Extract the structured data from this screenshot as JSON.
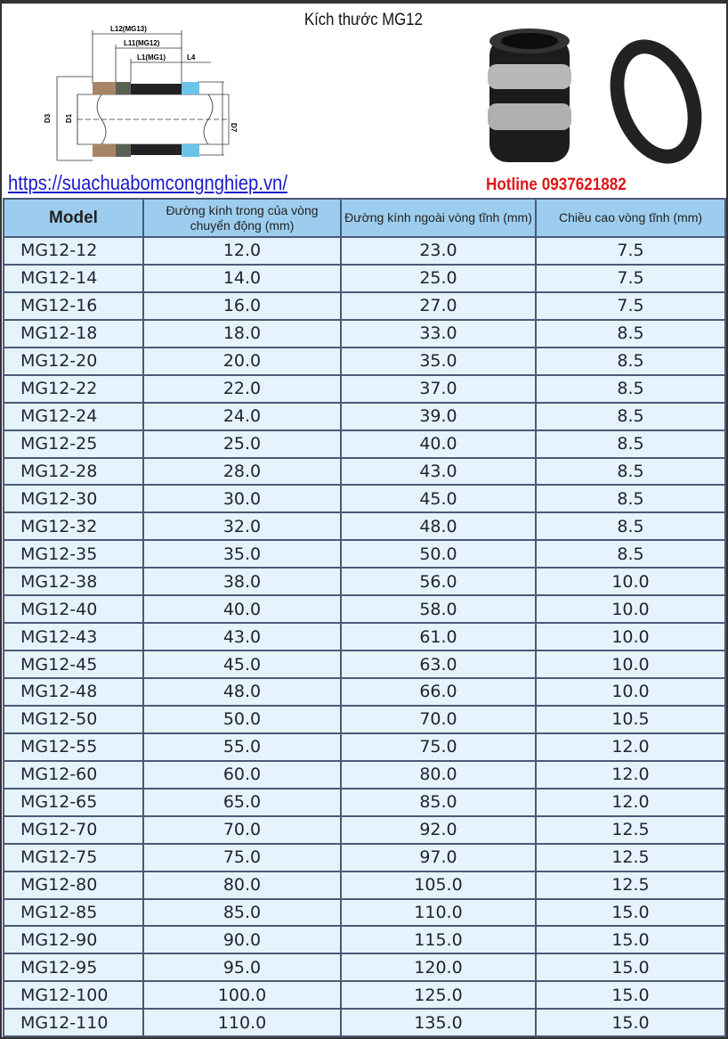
{
  "header": {
    "title": "Kích thước MG12",
    "url": "https://suachuabomcongnghiep.vn/",
    "hotline": "Hotline 0937621882"
  },
  "diagram": {
    "labels": [
      "L12(MG13)",
      "L11(MG12)",
      "L1(MG1)",
      "L4",
      "D3",
      "D1",
      "D7"
    ]
  },
  "table": {
    "columns": [
      "Model",
      "Đường kính trong của vòng chuyển động (mm)",
      "Đường kính ngoài vòng tĩnh (mm)",
      "Chiều cao vòng tĩnh (mm)"
    ],
    "rows": [
      [
        "MG12-12",
        "12.0",
        "23.0",
        "7.5"
      ],
      [
        "MG12-14",
        "14.0",
        "25.0",
        "7.5"
      ],
      [
        "MG12-16",
        "16.0",
        "27.0",
        "7.5"
      ],
      [
        "MG12-18",
        "18.0",
        "33.0",
        "8.5"
      ],
      [
        "MG12-20",
        "20.0",
        "35.0",
        "8.5"
      ],
      [
        "MG12-22",
        "22.0",
        "37.0",
        "8.5"
      ],
      [
        "MG12-24",
        "24.0",
        "39.0",
        "8.5"
      ],
      [
        "MG12-25",
        "25.0",
        "40.0",
        "8.5"
      ],
      [
        "MG12-28",
        "28.0",
        "43.0",
        "8.5"
      ],
      [
        "MG12-30",
        "30.0",
        "45.0",
        "8.5"
      ],
      [
        "MG12-32",
        "32.0",
        "48.0",
        "8.5"
      ],
      [
        "MG12-35",
        "35.0",
        "50.0",
        "8.5"
      ],
      [
        "MG12-38",
        "38.0",
        "56.0",
        "10.0"
      ],
      [
        "MG12-40",
        "40.0",
        "58.0",
        "10.0"
      ],
      [
        "MG12-43",
        "43.0",
        "61.0",
        "10.0"
      ],
      [
        "MG12-45",
        "45.0",
        "63.0",
        "10.0"
      ],
      [
        "MG12-48",
        "48.0",
        "66.0",
        "10.0"
      ],
      [
        "MG12-50",
        "50.0",
        "70.0",
        "10.5"
      ],
      [
        "MG12-55",
        "55.0",
        "75.0",
        "12.0"
      ],
      [
        "MG12-60",
        "60.0",
        "80.0",
        "12.0"
      ],
      [
        "MG12-65",
        "65.0",
        "85.0",
        "12.0"
      ],
      [
        "MG12-70",
        "70.0",
        "92.0",
        "12.5"
      ],
      [
        "MG12-75",
        "75.0",
        "97.0",
        "12.5"
      ],
      [
        "MG12-80",
        "80.0",
        "105.0",
        "12.5"
      ],
      [
        "MG12-85",
        "85.0",
        "110.0",
        "15.0"
      ],
      [
        "MG12-90",
        "90.0",
        "115.0",
        "15.0"
      ],
      [
        "MG12-95",
        "95.0",
        "120.0",
        "15.0"
      ],
      [
        "MG12-100",
        "100.0",
        "125.0",
        "15.0"
      ],
      [
        "MG12-110",
        "110.0",
        "135.0",
        "15.0"
      ]
    ]
  },
  "colors": {
    "header_bg": "#9dcdee",
    "row_bg": "#e6f3fc",
    "border": "#4a5a78",
    "hotline": "#e01515",
    "url": "#1a1acc"
  }
}
